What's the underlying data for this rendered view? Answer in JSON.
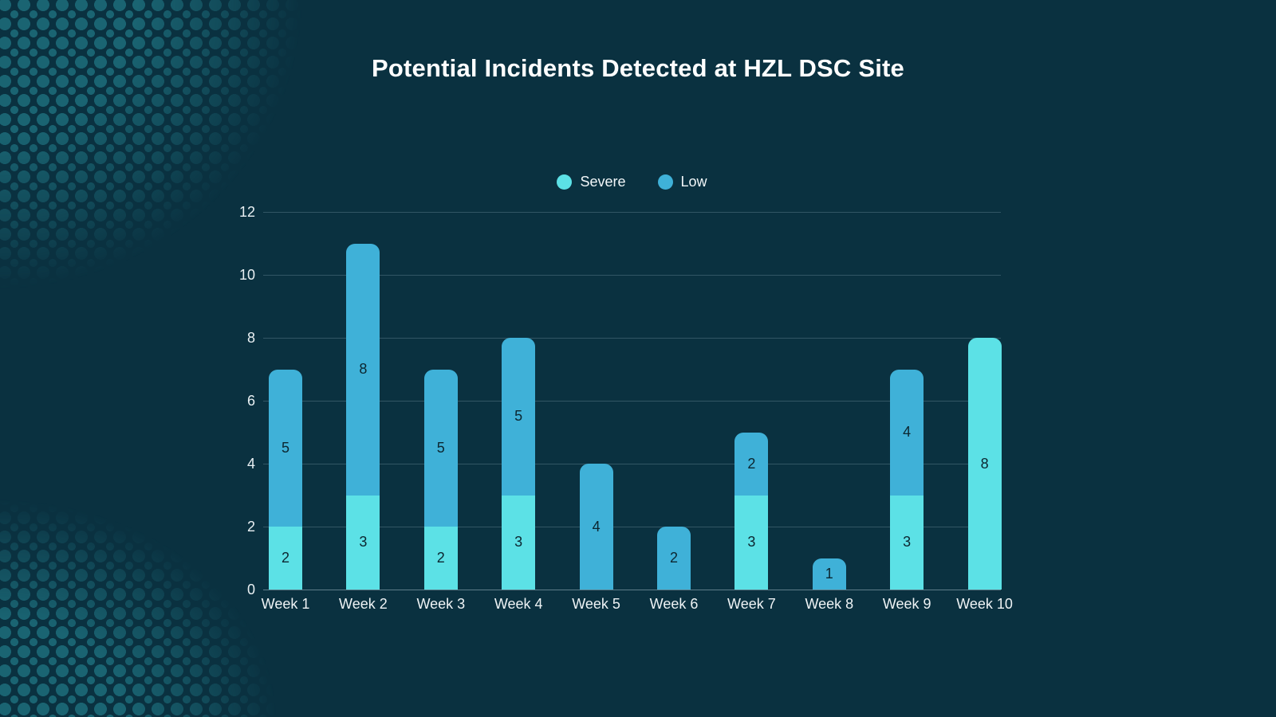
{
  "page": {
    "background_color": "#0a3140",
    "decor_dot_color": "#1a6472",
    "text_color": "#f2f7f9"
  },
  "chart_data": {
    "type": "bar",
    "stacked": true,
    "title": "Potential Incidents Detected at HZL DSC Site",
    "categories": [
      "Week 1",
      "Week 2",
      "Week 3",
      "Week 4",
      "Week 5",
      "Week 6",
      "Week 7",
      "Week 8",
      "Week 9",
      "Week 10"
    ],
    "series": [
      {
        "name": "Severe",
        "color": "#5ce1e6",
        "values": [
          2,
          3,
          2,
          3,
          0,
          0,
          3,
          0,
          3,
          8
        ]
      },
      {
        "name": "Low",
        "color": "#3fb1d8",
        "values": [
          5,
          8,
          5,
          5,
          4,
          2,
          2,
          1,
          4,
          0
        ]
      }
    ],
    "totals": [
      7,
      11,
      7,
      8,
      4,
      2,
      5,
      1,
      7,
      8
    ],
    "xlabel": "",
    "ylabel": "",
    "ylim": [
      0,
      12
    ],
    "yticks": [
      0,
      2,
      4,
      6,
      8,
      10,
      12
    ],
    "grid": true,
    "legend_position": "top-center",
    "value_labels": "inside-segments",
    "value_label_color": "#0c2630",
    "gridline_color": "#c3dae3"
  }
}
